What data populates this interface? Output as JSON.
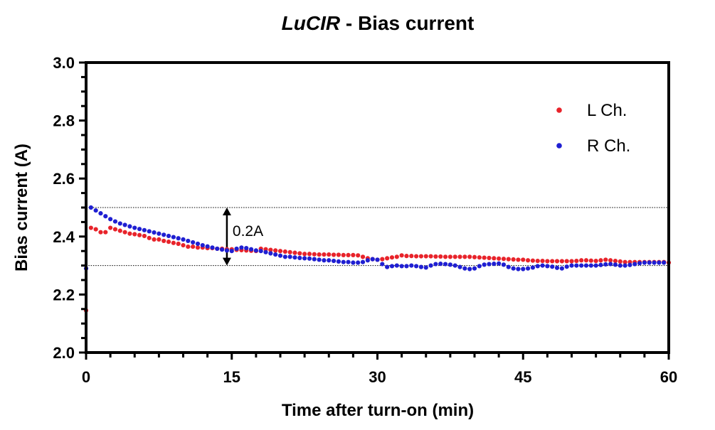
{
  "chart_data": {
    "type": "scatter",
    "title_italic": "LuCIR",
    "title_rest": " - Bias current",
    "xlabel": "Time after turn-on (min)",
    "ylabel": "Bias current (A)",
    "xlim": [
      0,
      60
    ],
    "ylim": [
      2.0,
      3.0
    ],
    "x_ticks": [
      0,
      15,
      30,
      45,
      60
    ],
    "y_ticks": [
      2.0,
      2.2,
      2.4,
      2.6,
      2.8,
      3.0
    ],
    "x_tick_labels": [
      "0",
      "15",
      "30",
      "45",
      "60"
    ],
    "y_tick_labels": [
      "2.0",
      "2.2",
      "2.4",
      "2.6",
      "2.8",
      "3.0"
    ],
    "grid": false,
    "legend_position": "top-right",
    "reference_lines": [
      2.5,
      2.3
    ],
    "annotation": {
      "text": "0.2A",
      "x": 14.5,
      "y_from": 2.3,
      "y_to": 2.5
    },
    "series": [
      {
        "name": "L Ch.",
        "color": "#e8232a",
        "points": [
          [
            0,
            2.145
          ],
          [
            0.5,
            2.43
          ],
          [
            1,
            2.425
          ],
          [
            1.5,
            2.415
          ],
          [
            2,
            2.415
          ],
          [
            2.5,
            2.43
          ],
          [
            3,
            2.425
          ],
          [
            3.5,
            2.42
          ],
          [
            4,
            2.415
          ],
          [
            4.5,
            2.41
          ],
          [
            5,
            2.408
          ],
          [
            5.5,
            2.405
          ],
          [
            6,
            2.402
          ],
          [
            6.5,
            2.395
          ],
          [
            7,
            2.39
          ],
          [
            7.5,
            2.39
          ],
          [
            8,
            2.385
          ],
          [
            8.5,
            2.382
          ],
          [
            9,
            2.378
          ],
          [
            9.5,
            2.375
          ],
          [
            10,
            2.37
          ],
          [
            10.5,
            2.365
          ],
          [
            11,
            2.365
          ],
          [
            11.5,
            2.362
          ],
          [
            12,
            2.362
          ],
          [
            12.5,
            2.36
          ],
          [
            13,
            2.36
          ],
          [
            13.5,
            2.358
          ],
          [
            14,
            2.358
          ],
          [
            14.5,
            2.356
          ],
          [
            15,
            2.356
          ],
          [
            15.5,
            2.354
          ],
          [
            16,
            2.353
          ],
          [
            16.5,
            2.352
          ],
          [
            17,
            2.351
          ],
          [
            17.5,
            2.35
          ],
          [
            18,
            2.358
          ],
          [
            18.5,
            2.356
          ],
          [
            19,
            2.354
          ],
          [
            19.5,
            2.352
          ],
          [
            20,
            2.35
          ],
          [
            20.5,
            2.348
          ],
          [
            21,
            2.346
          ],
          [
            21.5,
            2.344
          ],
          [
            22,
            2.342
          ],
          [
            22.5,
            2.34
          ],
          [
            23,
            2.34
          ],
          [
            23.5,
            2.339
          ],
          [
            24,
            2.338
          ],
          [
            24.5,
            2.338
          ],
          [
            25,
            2.338
          ],
          [
            25.5,
            2.337
          ],
          [
            26,
            2.337
          ],
          [
            26.5,
            2.336
          ],
          [
            27,
            2.336
          ],
          [
            27.5,
            2.336
          ],
          [
            28,
            2.335
          ],
          [
            28.5,
            2.33
          ],
          [
            29,
            2.325
          ],
          [
            29.5,
            2.322
          ],
          [
            30,
            2.32
          ],
          [
            30.5,
            2.322
          ],
          [
            31,
            2.325
          ],
          [
            31.5,
            2.328
          ],
          [
            32,
            2.33
          ],
          [
            32.5,
            2.335
          ],
          [
            33,
            2.333
          ],
          [
            33.5,
            2.333
          ],
          [
            34,
            2.332
          ],
          [
            34.5,
            2.332
          ],
          [
            35,
            2.332
          ],
          [
            35.5,
            2.332
          ],
          [
            36,
            2.331
          ],
          [
            36.5,
            2.331
          ],
          [
            37,
            2.33
          ],
          [
            37.5,
            2.33
          ],
          [
            38,
            2.33
          ],
          [
            38.5,
            2.33
          ],
          [
            39,
            2.33
          ],
          [
            39.5,
            2.33
          ],
          [
            40,
            2.329
          ],
          [
            40.5,
            2.328
          ],
          [
            41,
            2.327
          ],
          [
            41.5,
            2.326
          ],
          [
            42,
            2.325
          ],
          [
            42.5,
            2.324
          ],
          [
            43,
            2.323
          ],
          [
            43.5,
            2.322
          ],
          [
            44,
            2.321
          ],
          [
            44.5,
            2.32
          ],
          [
            45,
            2.32
          ],
          [
            45.5,
            2.318
          ],
          [
            46,
            2.317
          ],
          [
            46.5,
            2.316
          ],
          [
            47,
            2.316
          ],
          [
            47.5,
            2.315
          ],
          [
            48,
            2.315
          ],
          [
            48.5,
            2.315
          ],
          [
            49,
            2.315
          ],
          [
            49.5,
            2.315
          ],
          [
            50,
            2.315
          ],
          [
            50.5,
            2.316
          ],
          [
            51,
            2.318
          ],
          [
            51.5,
            2.318
          ],
          [
            52,
            2.317
          ],
          [
            52.5,
            2.316
          ],
          [
            53,
            2.318
          ],
          [
            53.5,
            2.32
          ],
          [
            54,
            2.318
          ],
          [
            54.5,
            2.316
          ],
          [
            55,
            2.314
          ],
          [
            55.5,
            2.312
          ],
          [
            56,
            2.312
          ],
          [
            56.5,
            2.312
          ],
          [
            57,
            2.312
          ],
          [
            57.5,
            2.312
          ],
          [
            58,
            2.312
          ],
          [
            58.5,
            2.312
          ],
          [
            59,
            2.312
          ],
          [
            59.5,
            2.312
          ],
          [
            60,
            2.31
          ]
        ]
      },
      {
        "name": "R Ch.",
        "color": "#1f1fd2",
        "points": [
          [
            0,
            2.29
          ],
          [
            0.5,
            2.5
          ],
          [
            1,
            2.49
          ],
          [
            1.5,
            2.48
          ],
          [
            2,
            2.47
          ],
          [
            2.5,
            2.46
          ],
          [
            3,
            2.452
          ],
          [
            3.5,
            2.445
          ],
          [
            4,
            2.44
          ],
          [
            4.5,
            2.435
          ],
          [
            5,
            2.43
          ],
          [
            5.5,
            2.426
          ],
          [
            6,
            2.422
          ],
          [
            6.5,
            2.418
          ],
          [
            7,
            2.414
          ],
          [
            7.5,
            2.41
          ],
          [
            8,
            2.406
          ],
          [
            8.5,
            2.402
          ],
          [
            9,
            2.398
          ],
          [
            9.5,
            2.394
          ],
          [
            10,
            2.39
          ],
          [
            10.5,
            2.385
          ],
          [
            11,
            2.38
          ],
          [
            11.5,
            2.375
          ],
          [
            12,
            2.37
          ],
          [
            12.5,
            2.366
          ],
          [
            13,
            2.362
          ],
          [
            13.5,
            2.358
          ],
          [
            14,
            2.355
          ],
          [
            14.5,
            2.352
          ],
          [
            15,
            2.35
          ],
          [
            15.5,
            2.358
          ],
          [
            16,
            2.362
          ],
          [
            16.5,
            2.36
          ],
          [
            17,
            2.356
          ],
          [
            17.5,
            2.352
          ],
          [
            18,
            2.35
          ],
          [
            18.5,
            2.346
          ],
          [
            19,
            2.342
          ],
          [
            19.5,
            2.338
          ],
          [
            20,
            2.334
          ],
          [
            20.5,
            2.33
          ],
          [
            21,
            2.33
          ],
          [
            21.5,
            2.328
          ],
          [
            22,
            2.326
          ],
          [
            22.5,
            2.325
          ],
          [
            23,
            2.324
          ],
          [
            23.5,
            2.322
          ],
          [
            24,
            2.32
          ],
          [
            24.5,
            2.318
          ],
          [
            25,
            2.318
          ],
          [
            25.5,
            2.316
          ],
          [
            26,
            2.314
          ],
          [
            26.5,
            2.312
          ],
          [
            27,
            2.312
          ],
          [
            27.5,
            2.31
          ],
          [
            28,
            2.31
          ],
          [
            28.5,
            2.312
          ],
          [
            29,
            2.318
          ],
          [
            29.5,
            2.322
          ],
          [
            30,
            2.32
          ],
          [
            30.5,
            2.305
          ],
          [
            31,
            2.295
          ],
          [
            31.5,
            2.298
          ],
          [
            32,
            2.3
          ],
          [
            32.5,
            2.298
          ],
          [
            33,
            2.298
          ],
          [
            33.5,
            2.3
          ],
          [
            34,
            2.298
          ],
          [
            34.5,
            2.295
          ],
          [
            35,
            2.293
          ],
          [
            35.5,
            2.3
          ],
          [
            36,
            2.305
          ],
          [
            36.5,
            2.306
          ],
          [
            37,
            2.305
          ],
          [
            37.5,
            2.303
          ],
          [
            38,
            2.3
          ],
          [
            38.5,
            2.295
          ],
          [
            39,
            2.29
          ],
          [
            39.5,
            2.288
          ],
          [
            40,
            2.29
          ],
          [
            40.5,
            2.298
          ],
          [
            41,
            2.303
          ],
          [
            41.5,
            2.305
          ],
          [
            42,
            2.306
          ],
          [
            42.5,
            2.307
          ],
          [
            43,
            2.303
          ],
          [
            43.5,
            2.295
          ],
          [
            44,
            2.29
          ],
          [
            44.5,
            2.288
          ],
          [
            45,
            2.288
          ],
          [
            45.5,
            2.29
          ],
          [
            46,
            2.293
          ],
          [
            46.5,
            2.298
          ],
          [
            47,
            2.3
          ],
          [
            47.5,
            2.298
          ],
          [
            48,
            2.296
          ],
          [
            48.5,
            2.292
          ],
          [
            49,
            2.29
          ],
          [
            49.5,
            2.296
          ],
          [
            50,
            2.3
          ],
          [
            50.5,
            2.3
          ],
          [
            51,
            2.3
          ],
          [
            51.5,
            2.3
          ],
          [
            52,
            2.3
          ],
          [
            52.5,
            2.3
          ],
          [
            53,
            2.302
          ],
          [
            53.5,
            2.304
          ],
          [
            54,
            2.305
          ],
          [
            54.5,
            2.303
          ],
          [
            55,
            2.3
          ],
          [
            55.5,
            2.3
          ],
          [
            56,
            2.302
          ],
          [
            56.5,
            2.305
          ],
          [
            57,
            2.308
          ],
          [
            57.5,
            2.31
          ],
          [
            58,
            2.31
          ],
          [
            58.5,
            2.31
          ],
          [
            59,
            2.31
          ],
          [
            59.5,
            2.31
          ]
        ]
      }
    ]
  }
}
